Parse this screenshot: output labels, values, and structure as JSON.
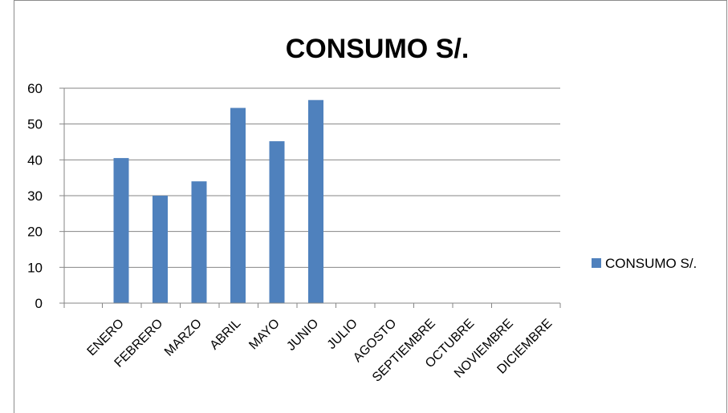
{
  "chart_data": {
    "type": "bar",
    "title": "CONSUMO S/.",
    "xlabel": "",
    "ylabel": "",
    "categories": [
      "ENERO",
      "FEBRERO",
      "MARZO",
      "ABRIL",
      "MAYO",
      "JUNIO",
      "JULIO",
      "AGOSTO",
      "SEPTIEMBRE",
      "OCTUBRE",
      "NOVIEMBRE",
      "DICIEMBRE"
    ],
    "series": [
      {
        "name": "CONSUMO S/.",
        "values": [
          40.5,
          30,
          34,
          54.5,
          45.2,
          56.7,
          null,
          null,
          null,
          null,
          null,
          null
        ],
        "color": "#4f81bd"
      }
    ],
    "ylim": [
      0,
      60
    ],
    "yticks": [
      "0",
      "10",
      "20",
      "30",
      "40",
      "50",
      "60"
    ],
    "grid": true,
    "legend_position": "right"
  }
}
